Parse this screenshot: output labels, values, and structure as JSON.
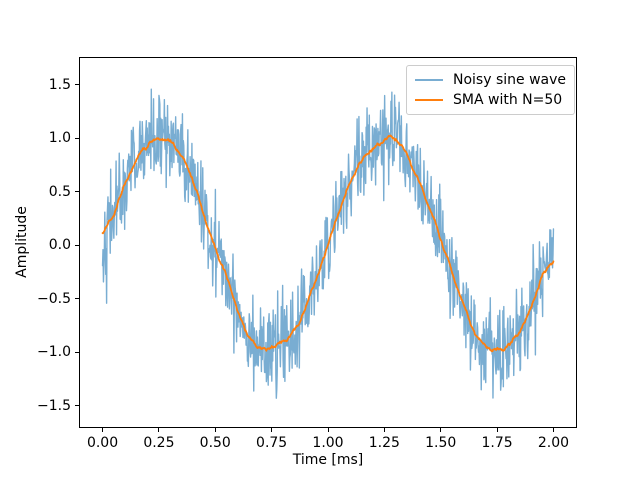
{
  "chart_data": {
    "type": "line",
    "title": "",
    "xlabel": "Time [ms]",
    "ylabel": "Amplitude",
    "xlim": [
      -0.1,
      2.1
    ],
    "ylim": [
      -1.7,
      1.75
    ],
    "grid": false,
    "x_ticks": [
      0.0,
      0.25,
      0.5,
      0.75,
      1.0,
      1.25,
      1.5,
      1.75,
      2.0
    ],
    "x_tick_labels": [
      "0.00",
      "0.25",
      "0.50",
      "0.75",
      "1.00",
      "1.25",
      "1.50",
      "1.75",
      "2.00"
    ],
    "y_ticks": [
      1.5,
      1.0,
      0.5,
      0.0,
      -0.5,
      -1.0,
      -1.5
    ],
    "y_tick_labels": [
      "1.5",
      "1.0",
      "0.5",
      "0.0",
      "−0.5",
      "−1.0",
      "−1.5"
    ],
    "legend": {
      "position": "upper-right",
      "entries": [
        "Noisy sine wave",
        "SMA with N=50"
      ]
    },
    "series": [
      {
        "name": "Noisy sine wave",
        "color": "#1f77b4",
        "alpha": 0.6,
        "line_width": 1.4,
        "generator": {
          "kind": "noisy_sine",
          "n_points": 1000,
          "t_start": 0,
          "t_end": 2,
          "amplitude": 1,
          "cycles_per_ms": 1,
          "noise_std": 0.2,
          "seed": 42,
          "observed_max": 1.62,
          "observed_min": -1.53
        }
      },
      {
        "name": "SMA with N=50",
        "color": "#ff7f0e",
        "alpha": 1,
        "line_width": 1.8,
        "generator": {
          "kind": "centered_moving_average",
          "source_series": 0,
          "window": 50,
          "observed_peak": 1.03,
          "observed_trough": -1.0
        }
      }
    ],
    "colors": {
      "background": "#ffffff",
      "spine": "#000000",
      "text": "#000000",
      "legend_border": "#cccccc"
    }
  }
}
